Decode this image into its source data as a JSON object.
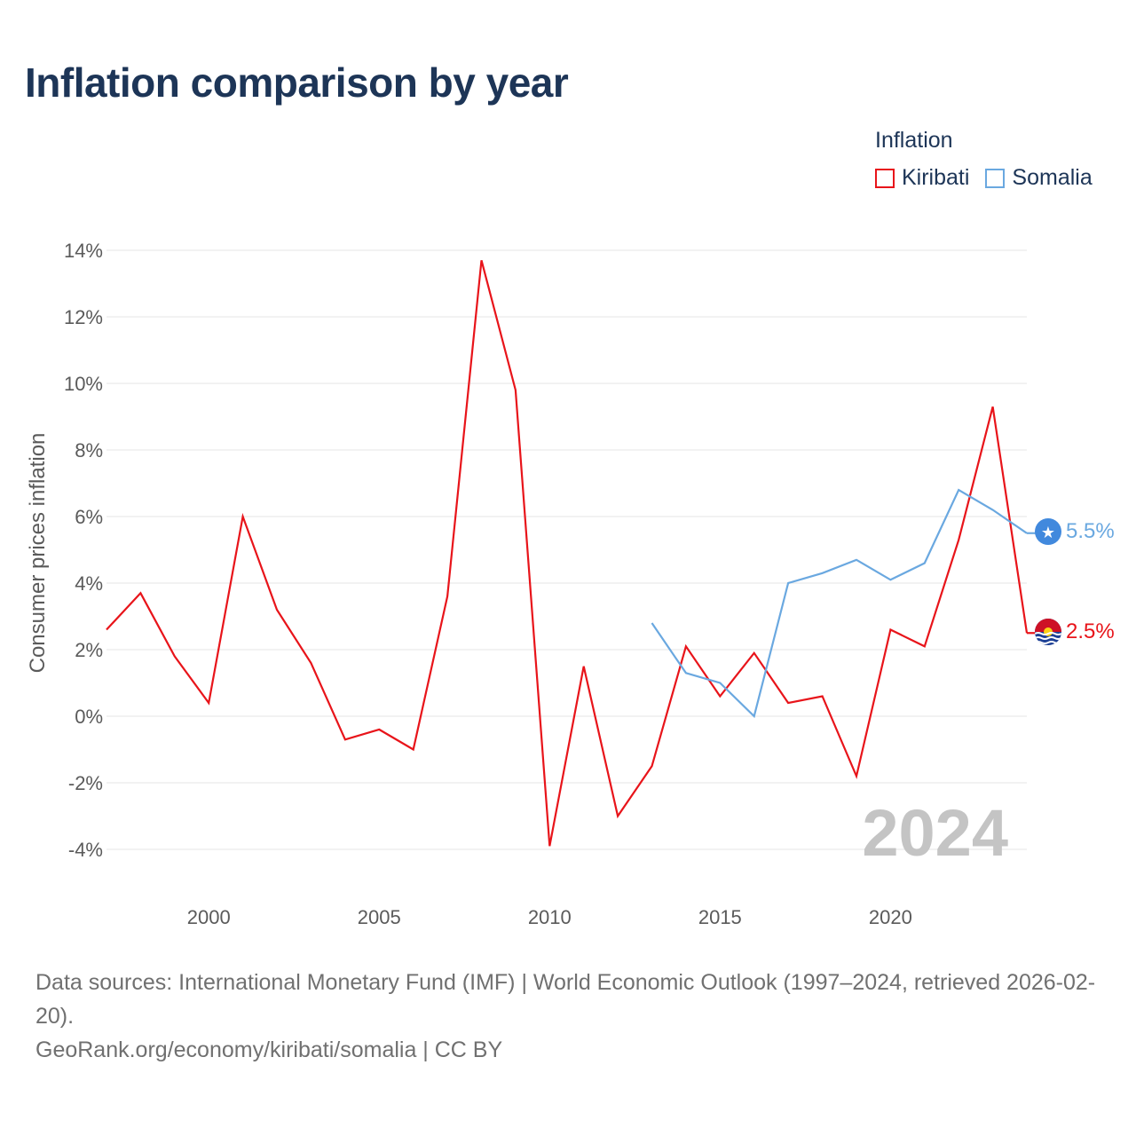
{
  "title": "Inflation comparison by year",
  "legend": {
    "title": "Inflation",
    "items": [
      {
        "label": "Kiribati",
        "color": "#e8141a"
      },
      {
        "label": "Somalia",
        "color": "#6aa8e0"
      }
    ]
  },
  "footer": {
    "sources": "Data sources: International Monetary Fund (IMF) | World Economic Outlook (1997–2024, retrieved 2026-02-20).",
    "credit": "GeoRank.org/economy/kiribati/somalia | CC BY"
  },
  "chart_data": {
    "type": "line",
    "title": "Inflation comparison by year",
    "xlabel": "",
    "ylabel": "Consumer prices inflation",
    "xlim": [
      1997,
      2024
    ],
    "ylim": [
      -4,
      14
    ],
    "x_ticks": [
      2000,
      2005,
      2010,
      2015,
      2020
    ],
    "y_ticks": [
      -4,
      -2,
      0,
      2,
      4,
      6,
      8,
      10,
      12,
      14
    ],
    "y_tick_labels": [
      "-4%",
      "-2%",
      "0%",
      "2%",
      "4%",
      "6%",
      "8%",
      "10%",
      "12%",
      "14%"
    ],
    "grid": true,
    "watermark": "2024",
    "series": [
      {
        "name": "Kiribati",
        "color": "#e8141a",
        "end_label": "2.5%",
        "x": [
          1997,
          1998,
          1999,
          2000,
          2001,
          2002,
          2003,
          2004,
          2005,
          2006,
          2007,
          2008,
          2009,
          2010,
          2011,
          2012,
          2013,
          2014,
          2015,
          2016,
          2017,
          2018,
          2019,
          2020,
          2021,
          2022,
          2023,
          2024
        ],
        "values": [
          2.6,
          3.7,
          1.8,
          0.4,
          6.0,
          3.2,
          1.6,
          -0.7,
          -0.4,
          -1.0,
          3.6,
          13.7,
          9.8,
          -3.9,
          1.5,
          -3.0,
          -1.5,
          2.1,
          0.6,
          1.9,
          0.4,
          0.6,
          -1.8,
          2.6,
          2.1,
          5.3,
          9.3,
          2.5
        ]
      },
      {
        "name": "Somalia",
        "color": "#6aa8e0",
        "end_label": "5.5%",
        "x": [
          2013,
          2014,
          2015,
          2016,
          2017,
          2018,
          2019,
          2020,
          2021,
          2022,
          2023,
          2024
        ],
        "values": [
          2.8,
          1.3,
          1.0,
          0.0,
          4.0,
          4.3,
          4.7,
          4.1,
          4.6,
          6.8,
          6.2,
          5.5
        ]
      }
    ]
  }
}
